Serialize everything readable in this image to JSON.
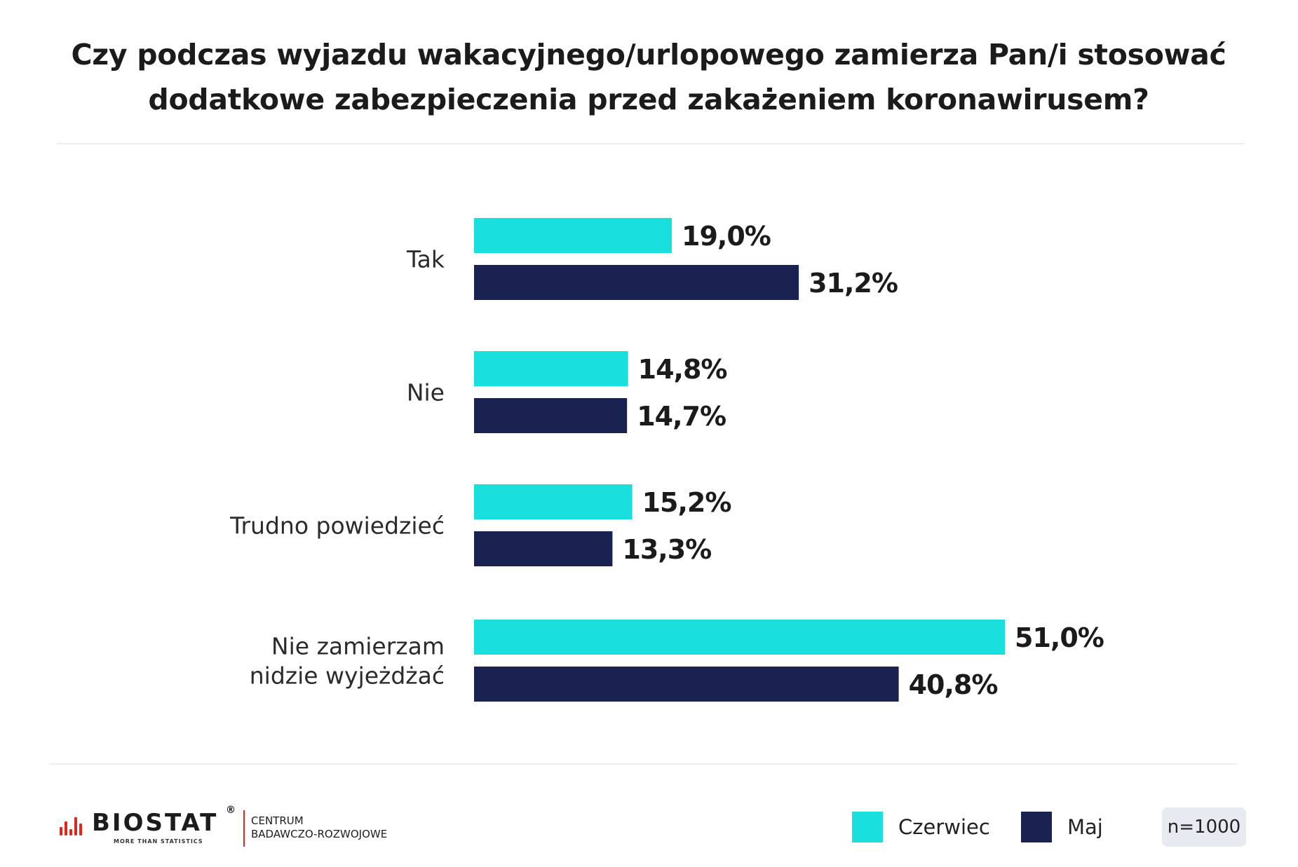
{
  "title_lines": [
    "Czy podczas wyjazdu wakacyjnego/urlopowego zamierza Pan/i stosować",
    "dodatkowe zabezpieczenia przed zakażeniem koronawirusem?"
  ],
  "chart_data": {
    "type": "bar",
    "orientation": "horizontal",
    "title": "Czy podczas wyjazdu wakacyjnego/urlopowego zamierza Pan/i stosować dodatkowe zabezpieczenia przed zakażeniem koronawirusem?",
    "categories": [
      [
        "Tak"
      ],
      [
        "Nie"
      ],
      [
        "Trudno powiedzieć"
      ],
      [
        "Nie zamierzam",
        "nidzie wyjeżdżać"
      ]
    ],
    "series": [
      {
        "name": "Czerwiec",
        "color": "#19e0dc",
        "values": [
          19.0,
          14.8,
          15.2,
          51.0
        ],
        "labels": [
          "19,0%",
          "14,8%",
          "15,2%",
          "51,0%"
        ]
      },
      {
        "name": "Maj",
        "color": "#192250",
        "values": [
          31.2,
          14.7,
          13.3,
          40.8
        ],
        "labels": [
          "31,2%",
          "14,7%",
          "13,3%",
          "40,8%"
        ]
      }
    ],
    "xlim": [
      0,
      51
    ],
    "grid": false,
    "legend_placement": "bottom-right"
  },
  "legend": [
    {
      "label": "Czerwiec",
      "color": "#19e0dc"
    },
    {
      "label": "Maj",
      "color": "#192250"
    }
  ],
  "sample_size": "n=1000",
  "logo": {
    "brand": "BIOSTAT",
    "registered": "®",
    "tagline": "MORE THAN STATISTICS",
    "subtitle_lines": [
      "CENTRUM",
      "BADAWCZO-ROZWOJOWE"
    ]
  }
}
